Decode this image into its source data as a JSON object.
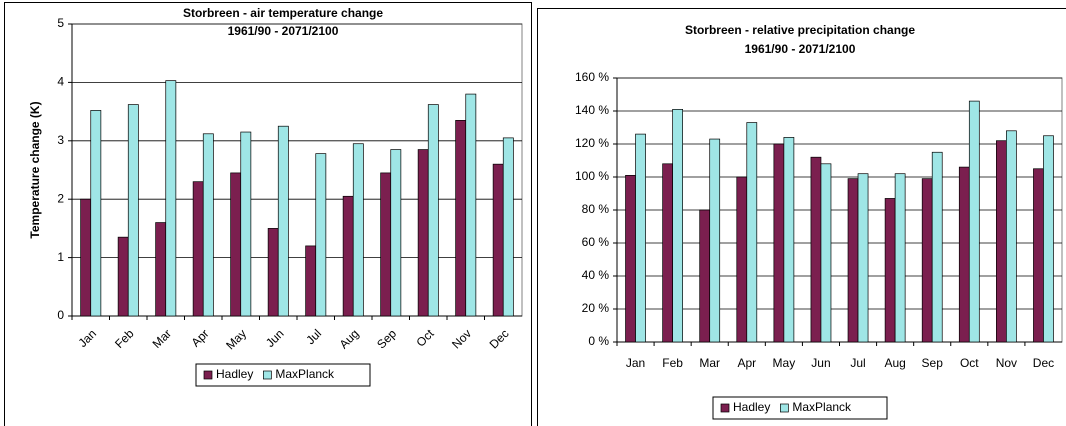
{
  "chart_data": [
    {
      "type": "bar",
      "title": "Storbreen - air temperature change",
      "subtitle": "1961/90 - 2071/2100",
      "y_label": "Temperature change (K)",
      "categories": [
        "Jan",
        "Feb",
        "Mar",
        "Apr",
        "May",
        "Jun",
        "Jul",
        "Aug",
        "Sep",
        "Oct",
        "Nov",
        "Dec"
      ],
      "series": [
        {
          "name": "Hadley",
          "color": "#7b1f4f",
          "values": [
            2.0,
            1.35,
            1.6,
            2.3,
            2.45,
            1.5,
            1.2,
            2.05,
            2.45,
            2.85,
            3.35,
            2.6
          ]
        },
        {
          "name": "MaxPlanck",
          "color": "#9fe6e6",
          "values": [
            3.52,
            3.62,
            4.03,
            3.12,
            3.15,
            3.25,
            2.78,
            2.95,
            2.85,
            3.62,
            3.8,
            3.05
          ]
        }
      ],
      "ylim": [
        0,
        5
      ],
      "yticks": [
        0,
        1,
        2,
        3,
        4,
        5
      ],
      "grid": true,
      "legend": "bottom"
    },
    {
      "type": "bar",
      "title": "Storbreen - relative precipitation change",
      "subtitle": "1961/90 - 2071/2100",
      "categories": [
        "Jan",
        "Feb",
        "Mar",
        "Apr",
        "May",
        "Jun",
        "Jul",
        "Aug",
        "Sep",
        "Oct",
        "Nov",
        "Dec"
      ],
      "series": [
        {
          "name": "Hadley",
          "color": "#7b1f4f",
          "values": [
            101,
            108,
            80,
            100,
            120,
            112,
            99,
            87,
            99,
            106,
            122,
            105
          ]
        },
        {
          "name": "MaxPlanck",
          "color": "#9fe6e6",
          "values": [
            126,
            141,
            123,
            133,
            124,
            108,
            102,
            102,
            115,
            146,
            128,
            125
          ]
        }
      ],
      "ylim": [
        0,
        160
      ],
      "yticks": [
        {
          "value": 0,
          "label": "0 %"
        },
        {
          "value": 20,
          "label": "20 %"
        },
        {
          "value": 40,
          "label": "40 %"
        },
        {
          "value": 60,
          "label": "60 %"
        },
        {
          "value": 80,
          "label": "80 %"
        },
        {
          "value": 100,
          "label": "100 %"
        },
        {
          "value": 120,
          "label": "120 %"
        },
        {
          "value": 140,
          "label": "140 %"
        },
        {
          "value": 160,
          "label": "160 %"
        }
      ],
      "grid": true,
      "legend": "bottom"
    }
  ]
}
